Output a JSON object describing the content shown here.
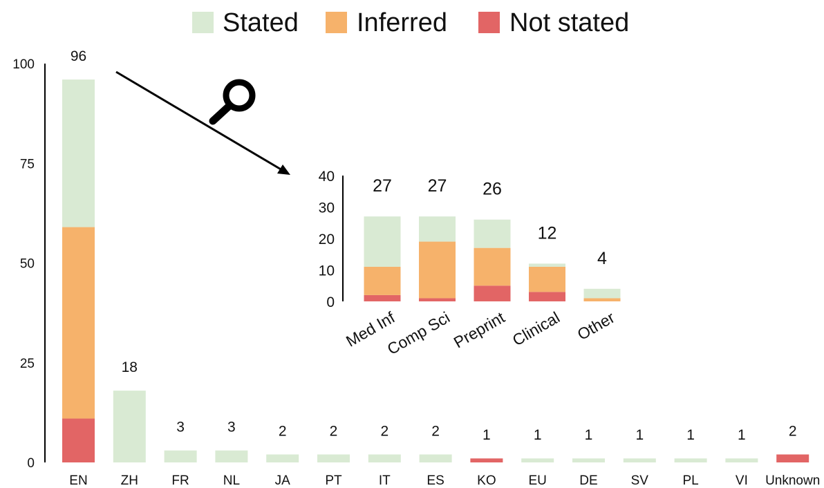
{
  "chart_data": [
    {
      "type": "bar",
      "stacked": true,
      "title": "",
      "xlabel": "",
      "ylabel": "",
      "ylim": [
        0,
        100
      ],
      "yticks": [
        0,
        25,
        50,
        75,
        100
      ],
      "grid": false,
      "legend": {
        "placement": "top-center"
      },
      "categories": [
        "EN",
        "ZH",
        "FR",
        "NL",
        "JA",
        "PT",
        "IT",
        "ES",
        "KO",
        "EU",
        "DE",
        "SV",
        "PL",
        "VI",
        "Unknown"
      ],
      "series": [
        {
          "name": "Not stated",
          "color": "#e26565",
          "values": [
            11,
            0,
            0,
            0,
            0,
            0,
            0,
            0,
            1,
            0,
            0,
            0,
            0,
            0,
            2
          ]
        },
        {
          "name": "Inferred",
          "color": "#f6b26b",
          "values": [
            48,
            0,
            0,
            0,
            0,
            0,
            0,
            0,
            0,
            0,
            0,
            0,
            0,
            0,
            0
          ]
        },
        {
          "name": "Stated",
          "color": "#d9ead3",
          "values": [
            37,
            18,
            3,
            3,
            2,
            2,
            2,
            2,
            0,
            1,
            1,
            1,
            1,
            1,
            0
          ]
        }
      ],
      "totals": [
        "96",
        "18",
        "3",
        "3",
        "2",
        "2",
        "2",
        "2",
        "1",
        "1",
        "1",
        "1",
        "1",
        "1",
        "2"
      ]
    },
    {
      "type": "bar",
      "stacked": true,
      "inset_of": "EN",
      "title": "",
      "xlabel": "",
      "ylabel": "",
      "ylim": [
        0,
        40
      ],
      "yticks": [
        0,
        10,
        20,
        30,
        40
      ],
      "grid": false,
      "categories": [
        "Med Inf",
        "Comp Sci",
        "Preprint",
        "Clinical",
        "Other"
      ],
      "series": [
        {
          "name": "Not stated",
          "color": "#e26565",
          "values": [
            2,
            1,
            5,
            3,
            0
          ]
        },
        {
          "name": "Inferred",
          "color": "#f6b26b",
          "values": [
            9,
            18,
            12,
            8,
            1
          ]
        },
        {
          "name": "Stated",
          "color": "#d9ead3",
          "values": [
            16,
            8,
            9,
            1,
            3
          ]
        }
      ],
      "totals": [
        "27",
        "27",
        "26",
        "12",
        "4"
      ]
    }
  ],
  "legend": [
    {
      "label": "Stated",
      "color": "#d9ead3"
    },
    {
      "label": "Inferred",
      "color": "#f6b26b"
    },
    {
      "label": "Not stated",
      "color": "#e26565"
    }
  ],
  "zoom_icon": "magnifier-icon"
}
